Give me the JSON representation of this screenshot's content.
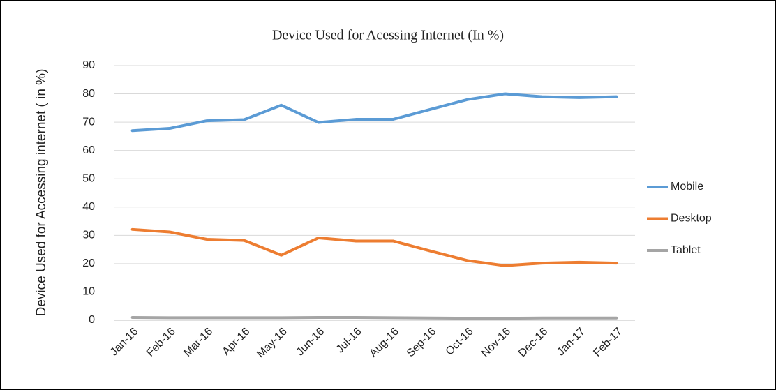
{
  "chart_data": {
    "type": "line",
    "title": "Device Used for Acessing Internet (In %)",
    "y_label": "Device Used for Accessing internet ( in %)",
    "categories": [
      "Jan-16",
      "Feb-16",
      "Mar-16",
      "Apr-16",
      "May-16",
      "Jun-16",
      "Jul-16",
      "Aug-16",
      "Sep-16",
      "Oct-16",
      "Nov-16",
      "Dec-16",
      "Jan-17",
      "Feb-17"
    ],
    "series": [
      {
        "name": "Mobile",
        "color": "#5b9bd5",
        "values": [
          67,
          67.8,
          70.5,
          70.9,
          76,
          69.9,
          71,
          71,
          74.5,
          78,
          80,
          79,
          78.7,
          79
        ]
      },
      {
        "name": "Desktop",
        "color": "#ed7d31",
        "values": [
          32.1,
          31.2,
          28.6,
          28.2,
          23,
          29.1,
          28,
          28,
          24.5,
          21.1,
          19.3,
          20.2,
          20.5,
          20.2
        ]
      },
      {
        "name": "Tablet",
        "color": "#a5a5a5",
        "values": [
          1.0,
          0.9,
          0.9,
          0.9,
          0.9,
          1.0,
          1.0,
          0.9,
          0.8,
          0.7,
          0.7,
          0.8,
          0.8,
          0.8
        ]
      }
    ],
    "ylim": [
      0,
      90
    ],
    "yticks": [
      0,
      10,
      20,
      30,
      40,
      50,
      60,
      70,
      80,
      90
    ],
    "grid": true,
    "legend": "right"
  }
}
